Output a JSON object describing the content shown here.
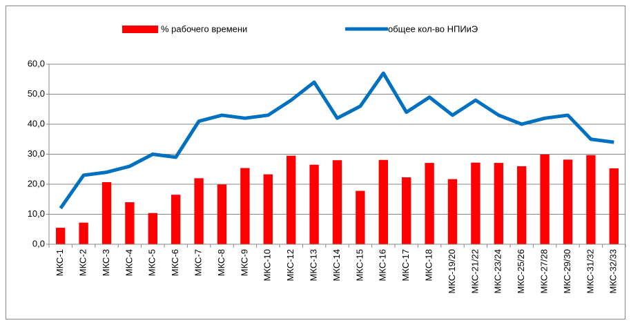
{
  "chart_data": {
    "type": "bar",
    "categories": [
      "МКС-1",
      "МКС-2",
      "МКС-3",
      "МКС-4",
      "МКС-5",
      "МКС-6",
      "МКС-7",
      "МКС-8",
      "МКС-9",
      "МКС-10",
      "МКС-12",
      "МКС-13",
      "МКС-14",
      "МКС-15",
      "МКС-16",
      "МКС-17",
      "МКС-18",
      "МКС-19/20",
      "МКС-21/22",
      "МКС-23/24",
      "МКС-25/26",
      "МКС-27/28",
      "МКС-29/30",
      "МКС-31/32",
      "МКС-32/33"
    ],
    "series": [
      {
        "name": "% рабочего времени",
        "type": "bar",
        "color": "#ff0000",
        "values": [
          5.5,
          7.2,
          20.7,
          14,
          10.4,
          16.5,
          22,
          19.9,
          25.4,
          23.3,
          29.5,
          26.5,
          28,
          17.8,
          28.1,
          22.3,
          27.1,
          21.7,
          27.2,
          27.1,
          26,
          29.9,
          28.2,
          29.7,
          25.3
        ]
      },
      {
        "name": "общее кол-во НПИиЭ",
        "type": "line",
        "color": "#0070c0",
        "values": [
          12,
          23,
          24,
          26,
          30,
          29,
          41,
          43,
          42,
          43,
          48,
          54,
          42,
          46,
          57,
          44,
          49,
          43,
          48,
          43,
          40,
          42,
          43,
          35,
          34
        ]
      }
    ],
    "ylim": [
      0,
      60
    ],
    "yticks": [
      {
        "value": 0,
        "label": "0,0"
      },
      {
        "value": 10,
        "label": "10,0"
      },
      {
        "value": 20,
        "label": "20,0"
      },
      {
        "value": 30,
        "label": "30,0"
      },
      {
        "value": 40,
        "label": "40,0"
      },
      {
        "value": 50,
        "label": "50,0"
      },
      {
        "value": 60,
        "label": "60,0"
      }
    ],
    "grid": true,
    "legend": "top"
  }
}
